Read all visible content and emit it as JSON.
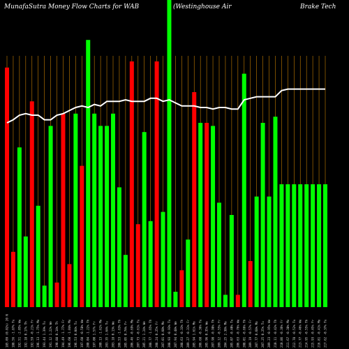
{
  "header": {
    "title_left": "MunafaSutra  Money Flow  Charts for WAB",
    "title_mid": "(Westinghouse    Air",
    "title_right": "Brake    Tech"
  },
  "colors": {
    "up": "#00ff00",
    "down": "#ff0000",
    "vline": "#c87f00",
    "line": "#ffffff",
    "background": "#000000"
  },
  "chart_data": {
    "type": "bar",
    "categories": [
      "185.09 (0.02%) 20 N",
      "188.56 -1.87% Tu",
      "192.51 -2.05% We",
      "192.18 0.17% Th",
      "192.59 -0.21% Fr",
      "196.13 -1.75% Mo",
      "193.44 1.39% Tu",
      "191.12 1.22% We",
      "190.88 0.14% Th",
      "194.49 -1.77% Fr",
      "196.60 -1.04% Mo",
      "196.53 0.04% Tu",
      "197.60 -0.58% We",
      "200.04 -1.22% Th",
      "197.00 1.57% Fr",
      "200.13 -1.62% Mo",
      "203.35 1.64% Tu",
      "203.18 0.13% We",
      "206.53 -1.63% Th",
      "205.05 0.74% Fr",
      "206.46 -0.69% Mo",
      "207.73 -0.61% Tu",
      "205.21 1.24% We",
      "208.77 -1.65% Th",
      "208.24 0.25% Fr",
      "207.01 0.60% Mo",
      "208.93 -0.93% Tu",
      "207.94 0.48% We",
      "208.63 -0.33% Th",
      "209.27 -0.31% Fr",
      "205.94 1.61% Mo",
      "206.68 -0.36% Tu",
      "205.96 0.35% We",
      "207.98 -0.98% Th",
      "209.12 -0.55% Fr",
      "204.25 2.38% Mo",
      "205.07 -0.40% Tu",
      "206.63 -0.76% We",
      "208.01 -0.66% Th",
      "209.19 -0.57% Fr",
      "207.77 0.68% Mo",
      "207.25 0.25% Tu",
      "209.23 -0.95% We",
      "210.11 -0.42% Th",
      "210.86 -0.36% Fr",
      "211.67 -0.38% Mo",
      "212.78 -0.52% Tu",
      "213.77 -0.46% We",
      "214.95 -0.55% Th",
      "215.93 -0.45% Fr",
      "216.81 -0.41% Mo",
      "217.62 -0.37% Tu"
    ],
    "bar_direction": [
      "d",
      "d",
      "u",
      "u",
      "d",
      "u",
      "u",
      "u",
      "d",
      "d",
      "d",
      "u",
      "d",
      "u",
      "u",
      "u",
      "u",
      "u",
      "u",
      "u",
      "d",
      "d",
      "u",
      "u",
      "d",
      "u",
      "u",
      "u",
      "d",
      "u",
      "d",
      "u",
      "d",
      "u",
      "u",
      "u",
      "u",
      "d",
      "u",
      "d",
      "u",
      "u",
      "u",
      "u",
      "u",
      "u",
      "u",
      "u",
      "u",
      "u",
      "u",
      "u"
    ],
    "values": [
      78,
      18,
      52,
      23,
      67,
      33,
      7,
      59,
      8,
      63,
      14,
      63,
      46,
      87,
      63,
      59,
      59,
      63,
      39,
      17,
      80,
      27,
      57,
      28,
      80,
      31,
      100,
      5,
      12,
      22,
      70,
      60,
      60,
      59,
      34,
      4,
      30,
      4,
      76,
      15,
      36,
      60,
      36,
      62,
      40,
      40,
      40,
      40,
      40,
      40,
      40,
      40
    ],
    "line": [
      60,
      61,
      62.5,
      63,
      62.5,
      62.5,
      61,
      61,
      62.5,
      63,
      64,
      65,
      65.5,
      65,
      66,
      65.5,
      67,
      67,
      67,
      67.5,
      67,
      67,
      67,
      68,
      68,
      67,
      67.5,
      66.5,
      65.5,
      65.5,
      65.5,
      65,
      65,
      64.5,
      65,
      65,
      64.5,
      64.5,
      67.5,
      68,
      68.5,
      68.5,
      68.5,
      68.5,
      70.5,
      71,
      71,
      71,
      71,
      71,
      71,
      71
    ],
    "ylim": [
      0,
      100
    ],
    "xlabel": "",
    "ylabel": "",
    "grid": false
  }
}
